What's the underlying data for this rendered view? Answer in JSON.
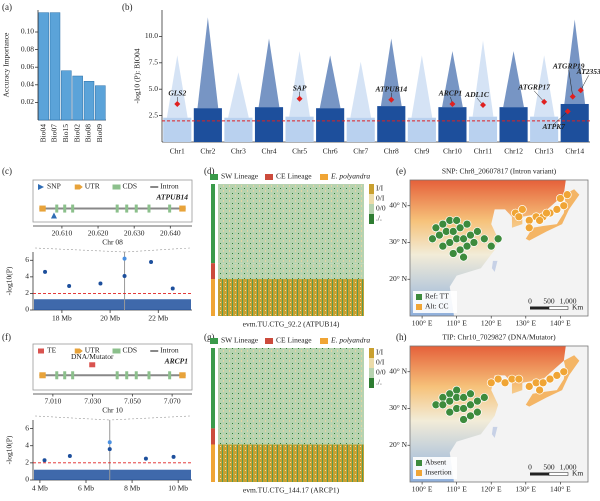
{
  "chart_data": [
    {
      "type": "bar",
      "panel": "(a)",
      "ylabel": "Accuracy Importance",
      "categories": [
        "Bio04",
        "Bio07",
        "Bio15",
        "Bio02",
        "Bio08",
        "Bio09"
      ],
      "values": [
        0.122,
        0.122,
        0.056,
        0.05,
        0.044,
        0.039
      ],
      "color": "#5ba3d9",
      "ylim": [
        0,
        0.125
      ],
      "yticks": [
        0.02,
        0.04,
        0.06,
        0.08,
        {
          "value": 0.1,
          "label": "0.10"
        }
      ]
    },
    {
      "type": "manhattan",
      "panel": "(b)",
      "ylabel": "-log10 (P): BIO04",
      "categories": [
        "Chr1",
        "Chr2",
        "Chr3",
        "Chr4",
        "Chr5",
        "Chr6",
        "Chr7",
        "Chr8",
        "Chr9",
        "Chr10",
        "Chr11",
        "Chr12",
        "Chr13",
        "Chr14"
      ],
      "body": [
        2.3,
        3.2,
        2.3,
        3.3,
        2.4,
        3.2,
        2.3,
        3.4,
        2.3,
        3.3,
        2.4,
        3.3,
        2.4,
        3.6
      ],
      "peaks": [
        8.2,
        11.8,
        6.6,
        9.8,
        8.6,
        8.2,
        7.6,
        9.8,
        8.2,
        8.6,
        9.6,
        8.6,
        8.2,
        11.6
      ],
      "colors": [
        "#b9d1ef",
        "#1d4f9c"
      ],
      "threshold": 2,
      "threshold_color": "#e02020",
      "ylim": [
        0,
        12.5
      ],
      "yticks": [
        2.5,
        {
          "value": 5,
          "label": "5.0"
        },
        7.5,
        {
          "value": 10,
          "label": "10.0"
        }
      ],
      "loci": [
        {
          "label": "GLS2",
          "category": "Chr1",
          "value": 3.6
        },
        {
          "label": "SAP",
          "category": "Chr5",
          "value": 4.1
        },
        {
          "label": "ATPUB14",
          "category": "Chr8",
          "value": 4.0
        },
        {
          "label": "ARCP1",
          "category": "Chr10",
          "value": 3.6
        },
        {
          "label": "ADL1C",
          "category": "Chr11",
          "value": 3.5
        },
        {
          "label": "ATGRP17",
          "category": "Chr13",
          "value": 3.8
        },
        {
          "label": "ATPK7",
          "category": "Chr14",
          "value": 2.9
        },
        {
          "label": "ATGRP19",
          "category": "Chr14",
          "value": 4.3
        },
        {
          "label": "AT2353",
          "category": "Chr14",
          "value": 4.9
        }
      ]
    },
    {
      "type": "gene",
      "panel": "(c)",
      "gene": "ATPUB14",
      "chrom": "Chr 08",
      "legend": [
        "SNP",
        "UTR",
        "CDS",
        "Intron"
      ],
      "legend_colors": [
        "#2f6db5",
        "#e8a33a",
        "#8cc08c",
        "#888888"
      ],
      "xlim": [
        20.602,
        20.646
      ],
      "xticks": [
        {
          "value": 20.61,
          "label": "20.610"
        },
        {
          "value": 20.62,
          "label": "20.620"
        },
        {
          "value": 20.63,
          "label": "20.630"
        },
        {
          "value": 20.64,
          "label": "20.640"
        }
      ],
      "variant": 20.6078
    },
    {
      "type": "local",
      "ylabel": "-log10(P)",
      "x": [
        17.3,
        18.3,
        19.6,
        20.6,
        20.6,
        21.7,
        22.6
      ],
      "values": [
        4.6,
        2.9,
        3.2,
        6.2,
        4.1,
        5.8,
        2.6
      ],
      "body_top": 1.3,
      "color": "#1d4f9c",
      "threshold": 2,
      "xlim": [
        16.8,
        23.4
      ],
      "xticks": [
        {
          "value": 18,
          "label": "18 Mb"
        },
        {
          "value": 20,
          "label": "20 Mb"
        },
        {
          "value": 22,
          "label": "22 Mb"
        }
      ],
      "ylim": [
        0,
        7
      ],
      "yticks": [
        0,
        2,
        4,
        6
      ]
    },
    {
      "type": "heatmap",
      "panel": "(d)",
      "groups": [
        {
          "name": "SW Lineage",
          "color": "#3a9a4a"
        },
        {
          "name": "CE Lineage",
          "color": "#cc4b3c"
        },
        {
          "name": "E. polyandra",
          "color": "#f0a535"
        }
      ],
      "legend": [
        "I/I",
        "0/I",
        "0/0",
        "./."
      ],
      "legend_colors": [
        "#c9a030",
        "#ecdcaa",
        "#b7d3b0",
        "#2e7d32"
      ],
      "gene": "evm.TU.CTG_92.2 (ATPUB14)"
    },
    {
      "type": "map",
      "panel": "(e)",
      "title": "SNP: Chr8_20607817 (Intron variant)",
      "xlim": [
        96.5,
        148
      ],
      "ylim": [
        10,
        47
      ],
      "xticks": [
        {
          "value": 100,
          "label": "100° E"
        },
        {
          "value": 110,
          "label": "110° E"
        },
        {
          "value": 120,
          "label": "120° E"
        },
        {
          "value": 130,
          "label": "130° E"
        },
        {
          "value": 140,
          "label": "140° E"
        }
      ],
      "yticks": [
        {
          "value": 20,
          "label": "20° N"
        },
        {
          "value": 30,
          "label": "30° N"
        },
        {
          "value": 40,
          "label": "40° N"
        }
      ],
      "series": [
        {
          "name": "Ref: TT",
          "color": "#3d8b3d",
          "x": [
            104,
            106,
            108,
            110,
            103,
            105,
            107,
            109,
            111,
            113,
            106,
            108,
            110,
            112,
            114,
            116,
            109,
            111,
            113,
            115,
            118,
            112,
            120,
            122
          ],
          "y": [
            34,
            35,
            36,
            36,
            31,
            32,
            33,
            33,
            34,
            35,
            29,
            30,
            31,
            31,
            32,
            33,
            27,
            28,
            29,
            30,
            31,
            26,
            29,
            31
          ]
        },
        {
          "name": "Alt: CC",
          "color": "#f0a535",
          "x": [
            127,
            129,
            131,
            133,
            135,
            137,
            139,
            141,
            140,
            142,
            134,
            131,
            128,
            136
          ],
          "y": [
            38,
            39,
            36,
            37,
            37,
            38,
            39,
            40,
            42,
            43,
            36,
            34,
            37,
            38
          ]
        }
      ],
      "scale": [
        "0",
        "500",
        "1,000",
        "Km"
      ]
    },
    {
      "type": "gene",
      "panel": "(f)",
      "gene": "ARCP1",
      "chrom": "Chr 10",
      "legend": [
        "TE",
        "UTR",
        "CDS",
        "Intron"
      ],
      "legend_colors": [
        "#d9534f",
        "#e8a33a",
        "#8cc08c",
        "#888888"
      ],
      "te_label": "DNA/Mutator",
      "xlim": [
        7.0,
        7.08
      ],
      "xticks": [
        {
          "value": 7.01,
          "label": "7.010"
        },
        {
          "value": 7.03,
          "label": "7.030"
        },
        {
          "value": 7.05,
          "label": "7.050"
        },
        {
          "value": 7.07,
          "label": "7.070"
        }
      ],
      "variant": 7.0298
    },
    {
      "type": "local",
      "ylabel": "-log10(P)",
      "x": [
        4.2,
        5.3,
        7.03,
        7.03,
        8.6,
        9.8
      ],
      "values": [
        2.3,
        2.8,
        4.4,
        3.6,
        2.5,
        2.7
      ],
      "body_top": 1.2,
      "color": "#1d4f9c",
      "threshold": 2,
      "xlim": [
        3.7,
        10.6
      ],
      "xticks": [
        {
          "value": 4,
          "label": "4 Mb"
        },
        {
          "value": 6,
          "label": "6 Mb"
        },
        {
          "value": 8,
          "label": "8 Mb"
        },
        {
          "value": 10,
          "label": "10 Mb"
        }
      ],
      "ylim": [
        0,
        7
      ],
      "yticks": [
        0,
        2,
        4,
        6
      ]
    },
    {
      "type": "heatmap",
      "panel": "(g)",
      "groups": [
        {
          "name": "SW Lineage",
          "color": "#3a9a4a"
        },
        {
          "name": "CE Lineage",
          "color": "#cc4b3c"
        },
        {
          "name": "E. polyandra",
          "color": "#f0a535"
        }
      ],
      "legend": [
        "I/I",
        "0/I",
        "0/0",
        "./."
      ],
      "legend_colors": [
        "#c9a030",
        "#ecdcaa",
        "#b7d3b0",
        "#2e7d32"
      ],
      "gene": "evm.TU.CTG_144.17 (ARCP1)"
    },
    {
      "type": "map",
      "panel": "(h)",
      "title": "TIP: Chr10_7029827 (DNA/Mutator)",
      "xlim": [
        96.5,
        148
      ],
      "ylim": [
        10,
        47
      ],
      "xticks": [
        {
          "value": 100,
          "label": "100° E"
        },
        {
          "value": 110,
          "label": "110° E"
        },
        {
          "value": 120,
          "label": "120° E"
        },
        {
          "value": 130,
          "label": "130° E"
        },
        {
          "value": 140,
          "label": "140° E"
        }
      ],
      "yticks": [
        {
          "value": 20,
          "label": "20° N"
        },
        {
          "value": 30,
          "label": "30° N"
        },
        {
          "value": 40,
          "label": "40° N"
        }
      ],
      "series": [
        {
          "name": "Absent",
          "color": "#3d8b3d",
          "x": [
            106,
            108,
            110,
            104,
            106,
            108,
            110,
            112,
            114,
            108,
            110,
            112,
            114,
            116,
            118,
            112,
            114,
            116
          ],
          "y": [
            33,
            34,
            35,
            31,
            31,
            32,
            33,
            33,
            34,
            29,
            30,
            30,
            31,
            32,
            33,
            27,
            28,
            29
          ]
        },
        {
          "name": "Insertion",
          "color": "#f0a535",
          "x": [
            120,
            122,
            124,
            126,
            128,
            131,
            133,
            135,
            137,
            139,
            141,
            134
          ],
          "y": [
            37,
            38,
            37,
            38,
            38,
            36,
            37,
            37,
            38,
            39,
            40,
            35
          ]
        }
      ],
      "scale": [
        "0",
        "500",
        "1,000",
        "Km"
      ]
    }
  ]
}
